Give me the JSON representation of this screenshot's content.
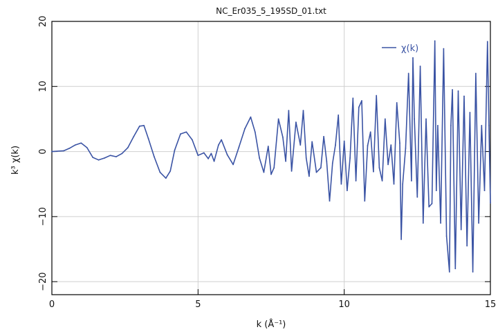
{
  "chart_data": {
    "type": "line",
    "title": "NC_Er035_5_195SD_01.txt",
    "xlabel": "k (Å⁻¹)",
    "ylabel": "k³ χ(k)",
    "xlim": [
      0,
      15
    ],
    "ylim": [
      -22,
      20
    ],
    "x_ticks": [
      0,
      5,
      10,
      15
    ],
    "x_tick_labels": [
      "0",
      "5",
      "10",
      "15"
    ],
    "y_ticks": [
      20,
      10,
      0,
      -10,
      -20
    ],
    "y_tick_labels": [
      "20",
      "10",
      "0",
      "−10",
      "−20"
    ],
    "grid": true,
    "legend_position": "top-right",
    "series": [
      {
        "name": "χ(k)",
        "color": "#3a53a4",
        "x": [
          0,
          0.4,
          0.6,
          0.8,
          1.0,
          1.2,
          1.4,
          1.6,
          1.8,
          2.0,
          2.2,
          2.4,
          2.6,
          2.8,
          3.0,
          3.15,
          3.3,
          3.5,
          3.7,
          3.9,
          4.05,
          4.2,
          4.4,
          4.6,
          4.8,
          5.0,
          5.2,
          5.35,
          5.45,
          5.55,
          5.7,
          5.8,
          6.0,
          6.2,
          6.4,
          6.6,
          6.8,
          6.95,
          7.1,
          7.25,
          7.4,
          7.5,
          7.6,
          7.75,
          7.9,
          8.0,
          8.1,
          8.2,
          8.35,
          8.5,
          8.6,
          8.7,
          8.8,
          8.9,
          9.05,
          9.2,
          9.3,
          9.4,
          9.5,
          9.6,
          9.7,
          9.8,
          9.9,
          10.0,
          10.1,
          10.2,
          10.3,
          10.4,
          10.5,
          10.6,
          10.7,
          10.8,
          10.9,
          11.0,
          11.1,
          11.2,
          11.3,
          11.4,
          11.5,
          11.6,
          11.7,
          11.8,
          11.9,
          11.95,
          12.0,
          12.1,
          12.2,
          12.3,
          12.35,
          12.4,
          12.5,
          12.6,
          12.7,
          12.8,
          12.9,
          13.0,
          13.1,
          13.15,
          13.2,
          13.3,
          13.4,
          13.5,
          13.6,
          13.65,
          13.7,
          13.8,
          13.9,
          14.0,
          14.1,
          14.2,
          14.3,
          14.4,
          14.5,
          14.6,
          14.7,
          14.8,
          14.9,
          14.95,
          15.0
        ],
        "values": [
          0,
          0.1,
          0.5,
          1.0,
          1.3,
          0.6,
          -0.9,
          -1.3,
          -1.0,
          -0.6,
          -0.8,
          -0.3,
          0.6,
          2.3,
          3.9,
          4.0,
          2.0,
          -0.8,
          -3.2,
          -4.1,
          -3.0,
          0.2,
          2.7,
          3.0,
          1.8,
          -0.6,
          -0.2,
          -1.1,
          -0.3,
          -1.5,
          1.0,
          1.8,
          -0.5,
          -2.0,
          0.7,
          3.5,
          5.3,
          3.0,
          -1.0,
          -3.2,
          0.8,
          -3.5,
          -2.5,
          5.0,
          2.2,
          -1.5,
          6.3,
          -3.0,
          4.5,
          1.0,
          6.3,
          -1.0,
          -3.8,
          1.5,
          -3.2,
          -2.5,
          2.3,
          -1.5,
          -7.6,
          -1.8,
          1.0,
          5.6,
          -5.0,
          1.6,
          -6.0,
          -1.0,
          8.2,
          -4.5,
          6.8,
          7.8,
          -7.6,
          0.9,
          3.0,
          -3.1,
          8.6,
          -2.5,
          -4.5,
          5.0,
          -2.0,
          1.0,
          -5.0,
          7.5,
          1.3,
          -13.5,
          -5.0,
          0.5,
          12.0,
          -4.5,
          14.4,
          5.0,
          -7.0,
          13.1,
          -11.0,
          5.0,
          -8.5,
          -8.0,
          17.0,
          -6.0,
          4.0,
          -11.0,
          15.8,
          -13.0,
          -18.5,
          4.0,
          9.5,
          -18.0,
          9.3,
          -12.0,
          8.5,
          -14.5,
          6.0,
          -18.5,
          12.0,
          -11.0,
          4.0,
          -6.0,
          16.9,
          4.0,
          -7.9
        ]
      }
    ]
  }
}
